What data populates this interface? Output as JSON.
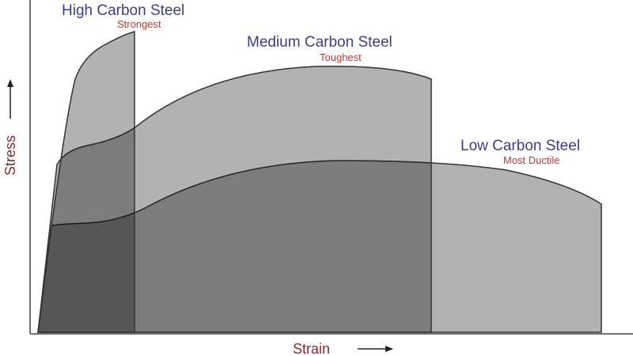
{
  "curves": [
    {
      "name": "High Carbon Steel",
      "note": "Strongest"
    },
    {
      "name": "Medium Carbon Steel",
      "note": "Toughest"
    },
    {
      "name": "Low Carbon Steel",
      "note": "Most Ductile"
    }
  ],
  "axes": {
    "y": "Stress",
    "x": "Strain"
  }
}
